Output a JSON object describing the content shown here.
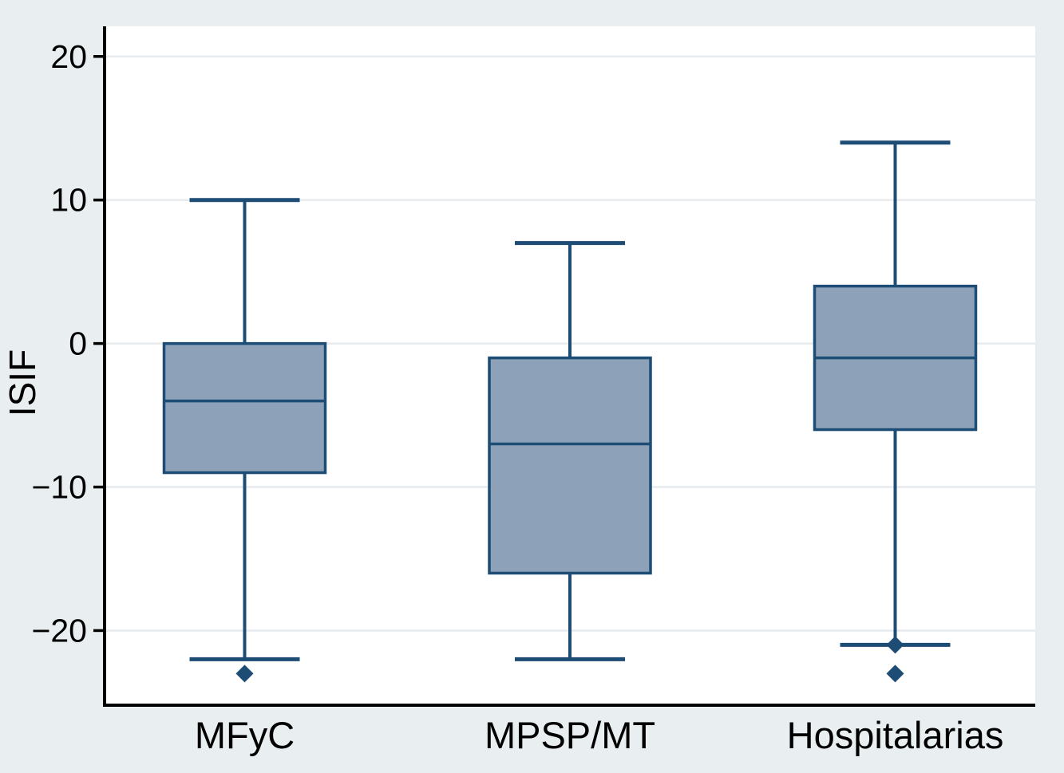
{
  "figure": {
    "background_color": "#e9eff1",
    "plot_background_color": "#ffffff",
    "gridline_color": "#e7ebed",
    "axis_color": "#000000",
    "box_fill_color": "#8da2b8",
    "box_stroke_color": "#1d4c74",
    "text_color": "#000000"
  },
  "chart_data": {
    "type": "box",
    "title": "",
    "xlabel": "",
    "ylabel": "ISIF",
    "categories": [
      "MFyC",
      "MPSP/MT",
      "Hospitalarias"
    ],
    "yticks": [
      {
        "value": 20,
        "label": "20"
      },
      {
        "value": 10,
        "label": "10"
      },
      {
        "value": 0,
        "label": "0"
      },
      {
        "value": -10,
        "label": "−10"
      },
      {
        "value": -20,
        "label": "−20"
      }
    ],
    "ylim": [
      -25.2,
      22.1
    ],
    "grid": true,
    "legend": "none",
    "series": [
      {
        "name": "MFyC",
        "whisker_low": -22,
        "q1": -9,
        "median": -4,
        "q3": 0,
        "whisker_high": 10,
        "outliers": [
          -23
        ]
      },
      {
        "name": "MPSP/MT",
        "whisker_low": -22,
        "q1": -16,
        "median": -7,
        "q3": -1,
        "whisker_high": 7,
        "outliers": []
      },
      {
        "name": "Hospitalarias",
        "whisker_low": -21,
        "q1": -6,
        "median": -1,
        "q3": 4,
        "whisker_high": 14,
        "outliers": [
          -21,
          -23
        ]
      }
    ]
  }
}
